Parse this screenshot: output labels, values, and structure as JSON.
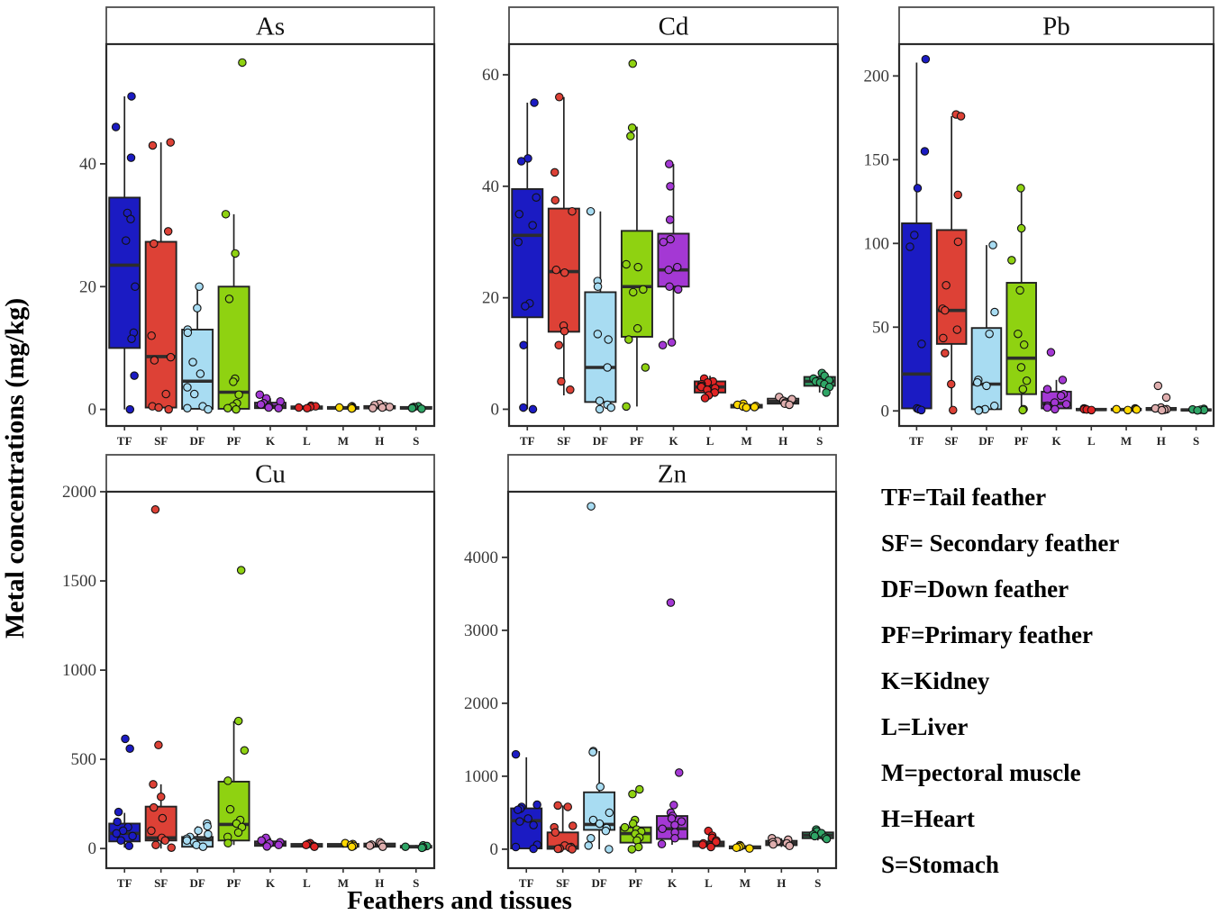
{
  "axes": {
    "y_label": "Metal concentrations (mg/kg)",
    "x_label": "Feathers and tissues"
  },
  "legend": {
    "items": [
      "TF=Tail feather",
      "SF= Secondary feather",
      "DF=Down feather",
      "PF=Primary feather",
      "K=Kidney",
      "L=Liver",
      "M=pectoral muscle",
      "H=Heart",
      "S=Stomach"
    ]
  },
  "palette": {
    "TF": "#1b1bc3",
    "SF": "#dd4136",
    "DF": "#a8dcf2",
    "PF": "#8fd211",
    "K": "#a438d4",
    "L": "#e02424",
    "M": "#ffd800",
    "H": "#dfaeae",
    "S": "#2fa566"
  },
  "chart_data": [
    {
      "type": "boxplot",
      "title": "As",
      "ylim": [
        -2.7,
        59.5
      ],
      "yticks": [
        0,
        20,
        40
      ],
      "categories": [
        "TF",
        "SF",
        "DF",
        "PF",
        "K",
        "L",
        "M",
        "H",
        "S"
      ],
      "boxes": [
        {
          "cat": "TF",
          "q1": 10,
          "median": 23.5,
          "q3": 34.5,
          "lo": 0,
          "hi": 51,
          "points": [
            51,
            46,
            41,
            32,
            31,
            27.5,
            20,
            12.5,
            11.5,
            5.5,
            0
          ]
        },
        {
          "cat": "SF",
          "q1": 0.3,
          "median": 8.6,
          "q3": 27.3,
          "lo": 0,
          "hi": 43.5,
          "points": [
            43.5,
            43,
            29,
            27,
            12,
            8.5,
            8,
            2.5,
            0.5,
            0.3,
            0
          ]
        },
        {
          "cat": "DF",
          "q1": 0.1,
          "median": 4.6,
          "q3": 13,
          "lo": 0,
          "hi": 20,
          "points": [
            20,
            16.5,
            13,
            12.5,
            7.7,
            5.8,
            3.6,
            2.5,
            0.5,
            0.2,
            0
          ]
        },
        {
          "cat": "PF",
          "q1": 0.1,
          "median": 2.8,
          "q3": 20,
          "lo": 0,
          "hi": 31.8,
          "points": [
            56.5,
            31.8,
            25.4,
            18,
            5,
            4.5,
            2.4,
            1,
            0.5,
            0.2,
            0
          ]
        },
        {
          "cat": "K",
          "q1": 0.2,
          "median": 0.5,
          "q3": 1.1,
          "lo": 0,
          "hi": 1.8,
          "points": [
            2.4,
            1.8,
            1.3,
            1,
            0.8,
            0.5,
            0.3,
            0.2
          ]
        },
        {
          "cat": "L",
          "q1": 0.1,
          "median": 0.3,
          "q3": 0.5,
          "lo": 0,
          "hi": 0.7,
          "points": [
            0.6,
            0.5,
            0.4,
            0.3,
            0.2
          ]
        },
        {
          "cat": "M",
          "q1": 0.1,
          "median": 0.25,
          "q3": 0.4,
          "lo": 0,
          "hi": 0.55,
          "points": [
            0.5,
            0.4,
            0.3,
            0.2,
            0.15
          ]
        },
        {
          "cat": "H",
          "q1": 0.15,
          "median": 0.35,
          "q3": 0.55,
          "lo": 0,
          "hi": 0.8,
          "points": [
            0.9,
            0.7,
            0.5,
            0.4,
            0.3,
            0.2
          ]
        },
        {
          "cat": "S",
          "q1": 0.1,
          "median": 0.25,
          "q3": 0.4,
          "lo": 0,
          "hi": 0.55,
          "points": [
            0.5,
            0.4,
            0.3,
            0.2,
            0.1
          ]
        }
      ]
    },
    {
      "type": "boxplot",
      "title": "Cd",
      "ylim": [
        -3,
        65.5
      ],
      "yticks": [
        0,
        20,
        40,
        60
      ],
      "categories": [
        "TF",
        "SF",
        "DF",
        "PF",
        "K",
        "L",
        "M",
        "H",
        "S"
      ],
      "boxes": [
        {
          "cat": "TF",
          "q1": 16.5,
          "median": 31.2,
          "q3": 39.5,
          "lo": 0,
          "hi": 55,
          "points": [
            55,
            45,
            44.5,
            38,
            35,
            33,
            30,
            19,
            18.5,
            11.5,
            0.3,
            0
          ]
        },
        {
          "cat": "SF",
          "q1": 13.9,
          "median": 24.7,
          "q3": 36,
          "lo": 2.5,
          "hi": 56,
          "points": [
            56,
            42.5,
            37.5,
            35.5,
            25,
            24.5,
            15,
            14,
            11.5,
            5,
            3.5
          ]
        },
        {
          "cat": "DF",
          "q1": 1.3,
          "median": 7.5,
          "q3": 21,
          "lo": 0,
          "hi": 35.5,
          "points": [
            35.5,
            23,
            22,
            13.5,
            12.5,
            7.5,
            1.5,
            0.8,
            0.3,
            0
          ]
        },
        {
          "cat": "PF",
          "q1": 13,
          "median": 22,
          "q3": 32,
          "lo": 0.5,
          "hi": 50.7,
          "points": [
            62,
            50.5,
            49,
            26,
            25.5,
            21.5,
            21,
            14.5,
            12.5,
            7.5,
            0.5
          ]
        },
        {
          "cat": "K",
          "q1": 22,
          "median": 25,
          "q3": 31.5,
          "lo": 11.5,
          "hi": 44,
          "points": [
            44,
            40,
            34,
            30.5,
            30,
            25.5,
            25,
            22,
            21.5,
            12,
            11.5
          ]
        },
        {
          "cat": "L",
          "q1": 3,
          "median": 4,
          "q3": 5,
          "lo": 2,
          "hi": 6,
          "points": [
            5.5,
            5,
            4.8,
            4.5,
            4.2,
            4,
            3.8,
            3.5,
            3,
            2.5,
            2
          ]
        },
        {
          "cat": "M",
          "q1": 0.3,
          "median": 0.5,
          "q3": 0.8,
          "lo": 0.1,
          "hi": 1,
          "points": [
            1,
            0.8,
            0.6,
            0.5,
            0.4,
            0.3
          ]
        },
        {
          "cat": "H",
          "q1": 1,
          "median": 1.4,
          "q3": 1.9,
          "lo": 0.6,
          "hi": 2.3,
          "points": [
            2.2,
            1.8,
            1.5,
            1.2,
            1,
            0.8
          ]
        },
        {
          "cat": "S",
          "q1": 4.2,
          "median": 5,
          "q3": 5.8,
          "lo": 3,
          "hi": 6.5,
          "points": [
            6.5,
            6,
            5.5,
            5.2,
            5,
            4.8,
            4.5,
            4,
            3
          ]
        }
      ]
    },
    {
      "type": "boxplot",
      "title": "Pb",
      "ylim": [
        -9,
        219
      ],
      "yticks": [
        0,
        50,
        100,
        150,
        200
      ],
      "categories": [
        "TF",
        "SF",
        "DF",
        "PF",
        "K",
        "L",
        "M",
        "H",
        "S"
      ],
      "boxes": [
        {
          "cat": "TF",
          "q1": 1.5,
          "median": 22,
          "q3": 112,
          "lo": 0.3,
          "hi": 208,
          "points": [
            210,
            155,
            133,
            105,
            98,
            40,
            1.5,
            1,
            0.5
          ]
        },
        {
          "cat": "SF",
          "q1": 40,
          "median": 60,
          "q3": 108,
          "lo": 0.5,
          "hi": 176,
          "points": [
            177,
            176,
            129,
            101,
            75,
            61,
            60,
            48.5,
            43.5,
            34.5,
            16,
            0.5
          ]
        },
        {
          "cat": "DF",
          "q1": 1,
          "median": 16,
          "q3": 49.5,
          "lo": 0.2,
          "hi": 99,
          "points": [
            99,
            59,
            46,
            18.5,
            17,
            15,
            3,
            1,
            0.5,
            0.2
          ]
        },
        {
          "cat": "PF",
          "q1": 10,
          "median": 31.5,
          "q3": 76.5,
          "lo": 0.5,
          "hi": 133,
          "points": [
            133,
            109,
            90,
            72,
            46,
            39.5,
            26,
            18,
            13,
            1,
            0.5
          ]
        },
        {
          "cat": "K",
          "q1": 1.5,
          "median": 4.5,
          "q3": 11.5,
          "lo": 0.3,
          "hi": 18.5,
          "points": [
            35,
            18.5,
            13,
            10,
            9,
            5,
            4,
            3,
            2,
            1
          ]
        },
        {
          "cat": "L",
          "q1": 0.4,
          "median": 0.8,
          "q3": 1.3,
          "lo": 0.2,
          "hi": 1.7,
          "points": [
            1.5,
            1.2,
            1,
            0.8,
            0.5
          ]
        },
        {
          "cat": "M",
          "q1": 0.4,
          "median": 0.8,
          "q3": 1.3,
          "lo": 0.2,
          "hi": 1.7,
          "points": [
            1.5,
            1.2,
            1,
            0.8,
            0.5
          ]
        },
        {
          "cat": "H",
          "q1": 0.5,
          "median": 1,
          "q3": 1.8,
          "lo": 0.2,
          "hi": 2.5,
          "points": [
            15,
            8,
            2,
            1.5,
            1,
            0.7,
            0.4
          ]
        },
        {
          "cat": "S",
          "q1": 0.3,
          "median": 0.6,
          "q3": 1,
          "lo": 0.1,
          "hi": 1.4,
          "points": [
            1.2,
            0.9,
            0.7,
            0.5,
            0.3
          ]
        }
      ]
    },
    {
      "type": "boxplot",
      "title": "Cu",
      "ylim": [
        -110,
        2000
      ],
      "yticks": [
        0,
        500,
        1000,
        1500,
        2000
      ],
      "categories": [
        "TF",
        "SF",
        "DF",
        "PF",
        "K",
        "L",
        "M",
        "H",
        "S"
      ],
      "boxes": [
        {
          "cat": "TF",
          "q1": 40,
          "median": 85,
          "q3": 140,
          "lo": 5,
          "hi": 200,
          "points": [
            615,
            560,
            205,
            150,
            120,
            100,
            85,
            70,
            45,
            15
          ]
        },
        {
          "cat": "SF",
          "q1": 45,
          "median": 60,
          "q3": 235,
          "lo": 0,
          "hi": 360,
          "points": [
            1900,
            580,
            360,
            290,
            230,
            170,
            100,
            60,
            45,
            20,
            5
          ]
        },
        {
          "cat": "DF",
          "q1": 10,
          "median": 50,
          "q3": 65,
          "lo": 0,
          "hi": 125,
          "points": [
            140,
            125,
            100,
            80,
            65,
            55,
            45,
            35,
            20,
            10
          ]
        },
        {
          "cat": "PF",
          "q1": 45,
          "median": 135,
          "q3": 375,
          "lo": 20,
          "hi": 715,
          "points": [
            1560,
            715,
            550,
            380,
            220,
            160,
            140,
            120,
            90,
            65,
            30
          ]
        },
        {
          "cat": "K",
          "q1": 15,
          "median": 25,
          "q3": 40,
          "lo": 5,
          "hi": 60,
          "points": [
            60,
            45,
            35,
            28,
            20,
            12
          ]
        },
        {
          "cat": "L",
          "q1": 10,
          "median": 18,
          "q3": 26,
          "lo": 5,
          "hi": 33,
          "points": [
            30,
            25,
            20,
            15,
            10
          ]
        },
        {
          "cat": "M",
          "q1": 10,
          "median": 18,
          "q3": 26,
          "lo": 5,
          "hi": 33,
          "points": [
            30,
            25,
            20,
            15,
            10
          ]
        },
        {
          "cat": "H",
          "q1": 10,
          "median": 20,
          "q3": 28,
          "lo": 5,
          "hi": 36,
          "points": [
            35,
            27,
            22,
            16,
            10
          ]
        },
        {
          "cat": "S",
          "q1": 5,
          "median": 10,
          "q3": 15,
          "lo": 2,
          "hi": 20,
          "points": [
            18,
            14,
            10,
            7,
            4
          ]
        }
      ]
    },
    {
      "type": "boxplot",
      "title": "Zn",
      "ylim": [
        -260,
        4900
      ],
      "yticks": [
        0,
        1000,
        2000,
        3000,
        4000
      ],
      "categories": [
        "TF",
        "SF",
        "DF",
        "PF",
        "K",
        "L",
        "M",
        "H",
        "S"
      ],
      "boxes": [
        {
          "cat": "TF",
          "q1": 10,
          "median": 390,
          "q3": 560,
          "lo": 0,
          "hi": 1260,
          "points": [
            1300,
            610,
            580,
            555,
            540,
            420,
            380,
            330,
            60,
            30,
            5
          ]
        },
        {
          "cat": "SF",
          "q1": 5,
          "median": 30,
          "q3": 230,
          "lo": 0,
          "hi": 600,
          "points": [
            600,
            580,
            320,
            300,
            230,
            50,
            30,
            20,
            10,
            5,
            0
          ]
        },
        {
          "cat": "DF",
          "q1": 265,
          "median": 340,
          "q3": 780,
          "lo": 0,
          "hi": 1345,
          "points": [
            4700,
            1345,
            1330,
            855,
            500,
            400,
            350,
            290,
            250,
            150,
            50,
            0
          ]
        },
        {
          "cat": "PF",
          "q1": 90,
          "median": 215,
          "q3": 300,
          "lo": 0,
          "hi": 400,
          "points": [
            820,
            755,
            400,
            350,
            300,
            270,
            240,
            210,
            160,
            120,
            30,
            0
          ]
        },
        {
          "cat": "K",
          "q1": 140,
          "median": 280,
          "q3": 455,
          "lo": 60,
          "hi": 605,
          "points": [
            3380,
            1050,
            605,
            500,
            455,
            420,
            380,
            330,
            280,
            230,
            150,
            70
          ]
        },
        {
          "cat": "L",
          "q1": 40,
          "median": 70,
          "q3": 105,
          "lo": 10,
          "hi": 160,
          "points": [
            250,
            185,
            155,
            120,
            100,
            80,
            60,
            30
          ]
        },
        {
          "cat": "M",
          "q1": 10,
          "median": 25,
          "q3": 40,
          "lo": 0,
          "hi": 55,
          "points": [
            55,
            40,
            30,
            20,
            10
          ]
        },
        {
          "cat": "H",
          "q1": 55,
          "median": 80,
          "q3": 115,
          "lo": 30,
          "hi": 150,
          "points": [
            150,
            130,
            110,
            95,
            80,
            65,
            45
          ]
        },
        {
          "cat": "S",
          "q1": 150,
          "median": 190,
          "q3": 230,
          "lo": 120,
          "hi": 270,
          "points": [
            270,
            245,
            220,
            200,
            180,
            160,
            140
          ]
        }
      ]
    }
  ]
}
